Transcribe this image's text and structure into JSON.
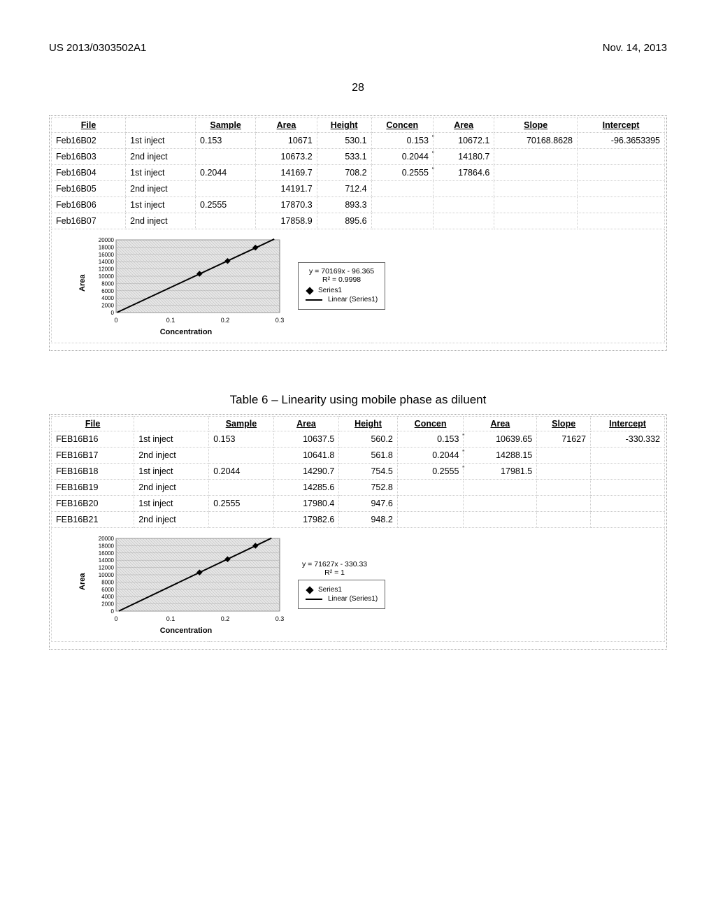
{
  "header": {
    "left": "US 2013/0303502A1",
    "right": "Nov. 14, 2013",
    "page": "28"
  },
  "table1": {
    "headers": [
      "File",
      "",
      "Sample",
      "Area",
      "Height",
      "Concen",
      "Area",
      "Slope",
      "Intercept"
    ],
    "rows": [
      [
        "Feb16B02",
        "1st inject",
        "0.153",
        "10671",
        "530.1",
        "0.153",
        "10672.1",
        "70168.8628",
        "-96.3653395"
      ],
      [
        "Feb16B03",
        "2nd inject",
        "",
        "10673.2",
        "533.1",
        "0.2044",
        "14180.7",
        "",
        ""
      ],
      [
        "Feb16B04",
        "1st inject",
        "0.2044",
        "14169.7",
        "708.2",
        "0.2555",
        "17864.6",
        "",
        ""
      ],
      [
        "Feb16B05",
        "2nd inject",
        "",
        "14191.7",
        "712.4",
        "",
        "",
        "",
        ""
      ],
      [
        "Feb16B06",
        "1st inject",
        "0.2555",
        "17870.3",
        "893.3",
        "",
        "",
        "",
        ""
      ],
      [
        "Feb16B07",
        "2nd inject",
        "",
        "17858.9",
        "895.6",
        "",
        "",
        "",
        ""
      ]
    ]
  },
  "chart1": {
    "type": "scatter-with-fit",
    "equation": "y = 70169x - 96.365",
    "r2": "R² = 0.9998",
    "ylabel": "Area",
    "xlabel": "Concentration",
    "yticks": [
      0,
      2000,
      4000,
      6000,
      8000,
      10000,
      12000,
      14000,
      16000,
      18000,
      20000
    ],
    "xticks": [
      0,
      0.1,
      0.2,
      0.3
    ],
    "xlim": [
      0,
      0.3
    ],
    "ylim": [
      0,
      20000
    ],
    "points": [
      [
        0.153,
        10672.1
      ],
      [
        0.2044,
        14180.7
      ],
      [
        0.2555,
        17864.6
      ]
    ],
    "line": [
      [
        0.002,
        50
      ],
      [
        0.29,
        20200
      ]
    ],
    "legend": [
      "Series1",
      "Linear (Series1)"
    ],
    "plot_bg": "#d9d9d9",
    "frame": "#000000"
  },
  "caption2": "Table 6 – Linearity using mobile phase as diluent",
  "table2": {
    "headers": [
      "File",
      "",
      "Sample",
      "Area",
      "Height",
      "Concen",
      "Area",
      "Slope",
      "Intercept"
    ],
    "rows": [
      [
        "FEB16B16",
        "1st inject",
        "0.153",
        "10637.5",
        "560.2",
        "0.153",
        "10639.65",
        "71627",
        "-330.332"
      ],
      [
        "FEB16B17",
        "2nd inject",
        "",
        "10641.8",
        "561.8",
        "0.2044",
        "14288.15",
        "",
        ""
      ],
      [
        "FEB16B18",
        "1st inject",
        "0.2044",
        "14290.7",
        "754.5",
        "0.2555",
        "17981.5",
        "",
        ""
      ],
      [
        "FEB16B19",
        "2nd inject",
        "",
        "14285.6",
        "752.8",
        "",
        "",
        "",
        ""
      ],
      [
        "FEB16B20",
        "1st inject",
        "0.2555",
        "17980.4",
        "947.6",
        "",
        "",
        "",
        ""
      ],
      [
        "FEB16B21",
        "2nd inject",
        "",
        "17982.6",
        "948.2",
        "",
        "",
        "",
        ""
      ]
    ]
  },
  "chart2": {
    "type": "scatter-with-fit",
    "equation": "y = 71627x - 330.33",
    "r2": "R² = 1",
    "ylabel": "Area",
    "xlabel": "Concentration",
    "yticks": [
      0,
      2000,
      4000,
      6000,
      8000,
      10000,
      12000,
      14000,
      16000,
      18000,
      20000
    ],
    "xticks": [
      0,
      0.1,
      0.2,
      0.3
    ],
    "xlim": [
      0,
      0.3
    ],
    "ylim": [
      0,
      20000
    ],
    "points": [
      [
        0.153,
        10639.65
      ],
      [
        0.2044,
        14288.15
      ],
      [
        0.2555,
        17981.5
      ]
    ],
    "line": [
      [
        0.005,
        30
      ],
      [
        0.285,
        20080
      ]
    ],
    "legend": [
      "Series1",
      "Linear (Series1)"
    ],
    "plot_bg": "#d9d9d9",
    "frame": "#000000"
  }
}
